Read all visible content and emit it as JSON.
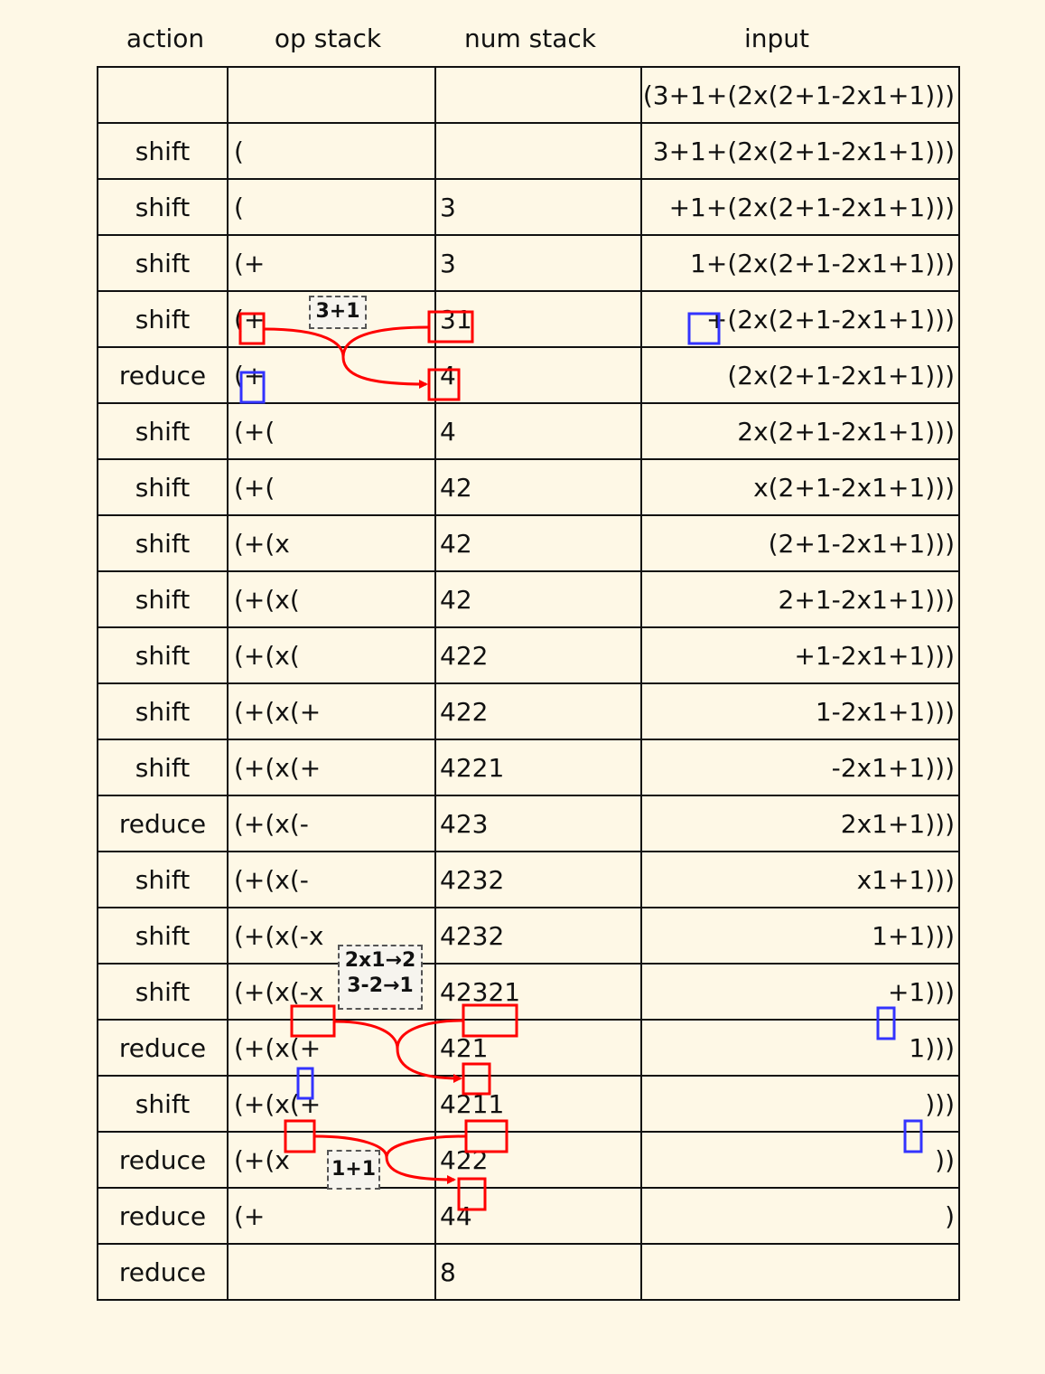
{
  "headers": {
    "action": "action",
    "op_stack": "op stack",
    "num_stack": "num stack",
    "input": "input"
  },
  "rows": [
    {
      "action": "",
      "op": "",
      "num": "",
      "input": "(3+1+(2x(2+1-2x1+1)))"
    },
    {
      "action": "shift",
      "op": "(",
      "num": "",
      "input": "3+1+(2x(2+1-2x1+1)))"
    },
    {
      "action": "shift",
      "op": "(",
      "num": "3",
      "input": "+1+(2x(2+1-2x1+1)))"
    },
    {
      "action": "shift",
      "op": "(+",
      "num": "3",
      "input": "1+(2x(2+1-2x1+1)))"
    },
    {
      "action": "shift",
      "op": "(+",
      "num": "31",
      "input": "+(2x(2+1-2x1+1)))"
    },
    {
      "action": "reduce",
      "op": "(+",
      "num": "4",
      "input": "(2x(2+1-2x1+1)))"
    },
    {
      "action": "shift",
      "op": "(+(",
      "num": "4",
      "input": "2x(2+1-2x1+1)))"
    },
    {
      "action": "shift",
      "op": "(+(",
      "num": "42",
      "input": "x(2+1-2x1+1)))"
    },
    {
      "action": "shift",
      "op": "(+(x",
      "num": "42",
      "input": "(2+1-2x1+1)))"
    },
    {
      "action": "shift",
      "op": "(+(x(",
      "num": "42",
      "input": "2+1-2x1+1)))"
    },
    {
      "action": "shift",
      "op": "(+(x(",
      "num": "422",
      "input": "+1-2x1+1)))"
    },
    {
      "action": "shift",
      "op": "(+(x(+",
      "num": "422",
      "input": "1-2x1+1)))"
    },
    {
      "action": "shift",
      "op": "(+(x(+",
      "num": "4221",
      "input": "-2x1+1)))"
    },
    {
      "action": "reduce",
      "op": "(+(x(-",
      "num": "423",
      "input": "2x1+1)))"
    },
    {
      "action": "shift",
      "op": "(+(x(-",
      "num": "4232",
      "input": "x1+1)))"
    },
    {
      "action": "shift",
      "op": "(+(x(-x",
      "num": "4232",
      "input": "1+1)))"
    },
    {
      "action": "shift",
      "op": "(+(x(-x",
      "num": "42321",
      "input": "+1)))"
    },
    {
      "action": "reduce",
      "op": "(+(x(+",
      "num": "421",
      "input": "1)))"
    },
    {
      "action": "shift",
      "op": "(+(x(+",
      "num": "4211",
      "input": ")))"
    },
    {
      "action": "reduce",
      "op": "(+(x",
      "num": "422",
      "input": "))"
    },
    {
      "action": "reduce",
      "op": "(+",
      "num": "44",
      "input": ")"
    },
    {
      "action": "reduce",
      "op": "",
      "num": "8",
      "input": ""
    }
  ],
  "annotations": {
    "reduce_1": "3+1",
    "reduce_2_line1": "2x1→2",
    "reduce_2_line2": "3-2→1",
    "reduce_3": "1+1"
  },
  "colors": {
    "reduce_highlight": "#ff0000",
    "next_highlight": "#3333ff",
    "background": "#fef8e6"
  }
}
